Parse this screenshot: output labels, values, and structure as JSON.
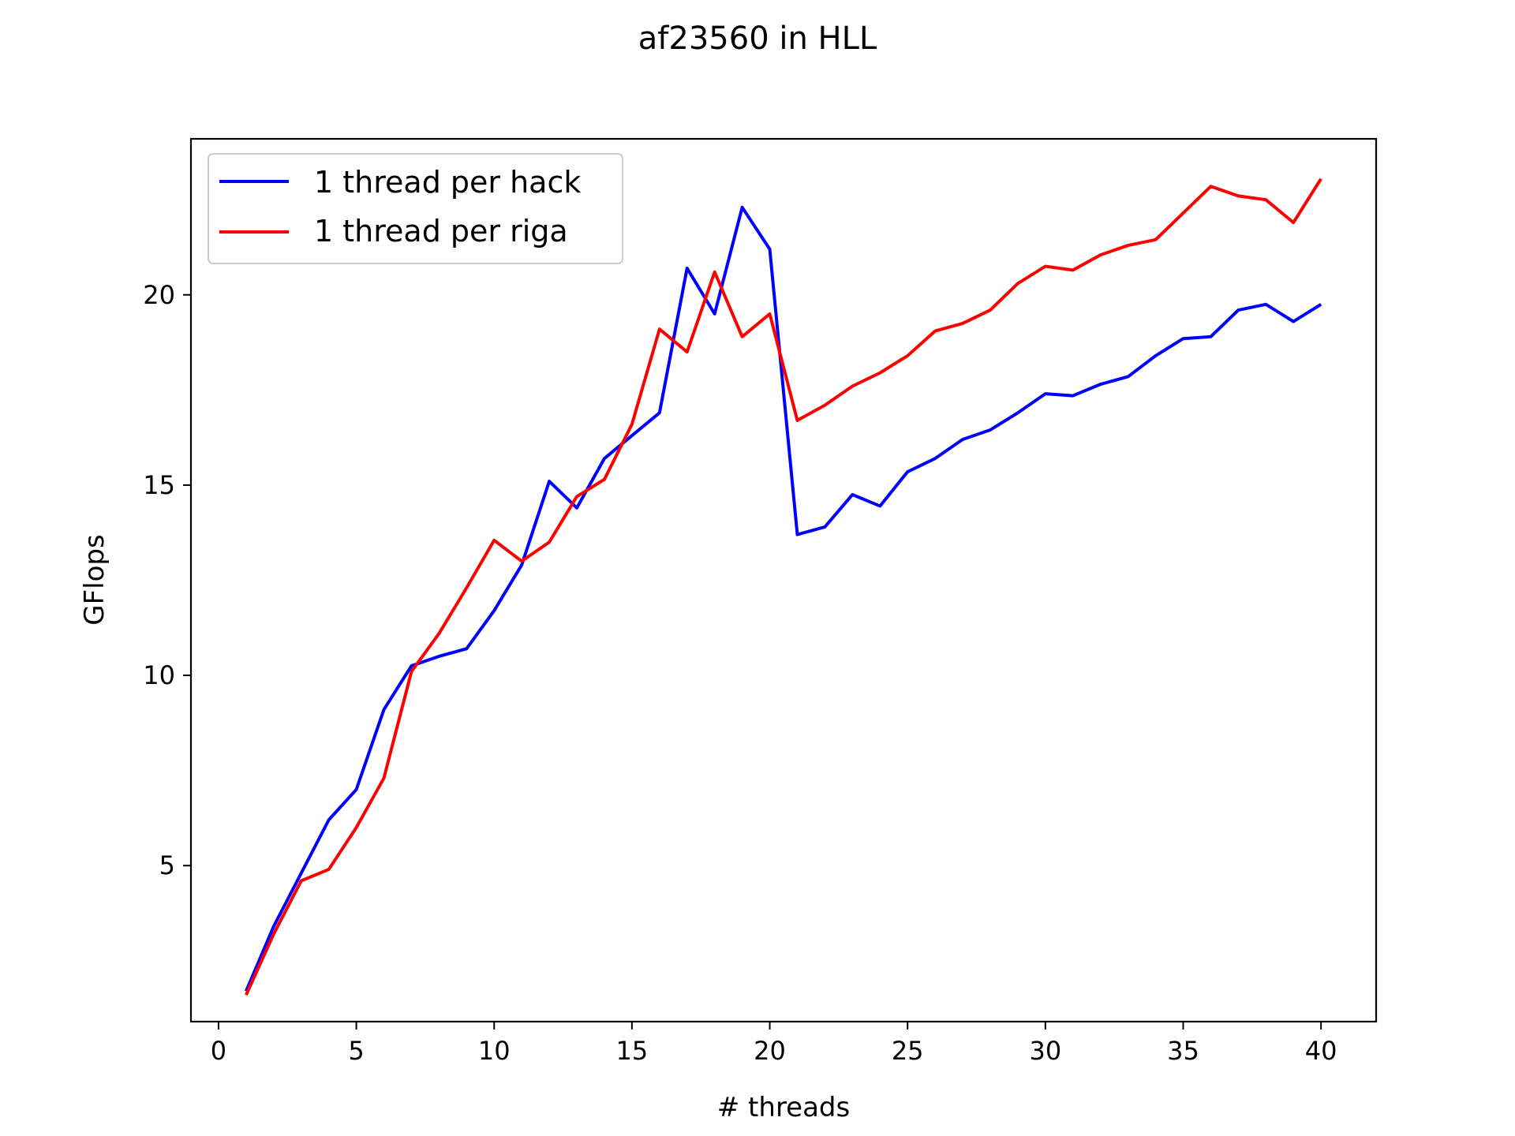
{
  "chart_data": {
    "type": "line",
    "title": "af23560 in HLL",
    "xlabel": "# threads",
    "ylabel": "GFlops",
    "xlim": [
      -1,
      42
    ],
    "ylim": [
      0.9,
      24.1
    ],
    "xticks": [
      0,
      5,
      10,
      15,
      20,
      25,
      30,
      35,
      40
    ],
    "yticks": [
      5,
      10,
      15,
      20
    ],
    "grid": false,
    "legend_position": "upper-left",
    "x": [
      1,
      2,
      3,
      4,
      5,
      6,
      7,
      8,
      9,
      10,
      11,
      12,
      13,
      14,
      15,
      16,
      17,
      18,
      19,
      20,
      21,
      22,
      23,
      24,
      25,
      26,
      27,
      28,
      29,
      30,
      31,
      32,
      33,
      34,
      35,
      36,
      37,
      38,
      39,
      40
    ],
    "series": [
      {
        "name": "1 thread per hack",
        "color": "#0000ff",
        "values": [
          1.7,
          3.4,
          4.8,
          6.2,
          7.0,
          9.1,
          10.25,
          10.5,
          10.7,
          11.7,
          12.9,
          15.1,
          14.4,
          15.7,
          16.3,
          16.9,
          20.7,
          19.5,
          22.3,
          21.2,
          13.7,
          13.9,
          14.75,
          14.45,
          15.35,
          15.7,
          16.2,
          16.45,
          16.9,
          17.4,
          17.35,
          17.65,
          17.85,
          18.4,
          18.85,
          18.9,
          19.6,
          19.75,
          19.3,
          19.75
        ]
      },
      {
        "name": "1 thread per riga",
        "color": "#ff0000",
        "values": [
          1.6,
          3.2,
          4.6,
          4.9,
          6.0,
          7.3,
          10.1,
          11.1,
          12.3,
          13.55,
          13.0,
          13.5,
          14.7,
          15.15,
          16.6,
          19.1,
          18.5,
          20.6,
          18.9,
          19.5,
          16.7,
          17.1,
          17.6,
          17.95,
          18.4,
          19.05,
          19.25,
          19.6,
          20.3,
          20.75,
          20.65,
          21.05,
          21.3,
          21.45,
          22.15,
          22.85,
          22.6,
          22.5,
          21.9,
          23.05
        ]
      }
    ]
  }
}
